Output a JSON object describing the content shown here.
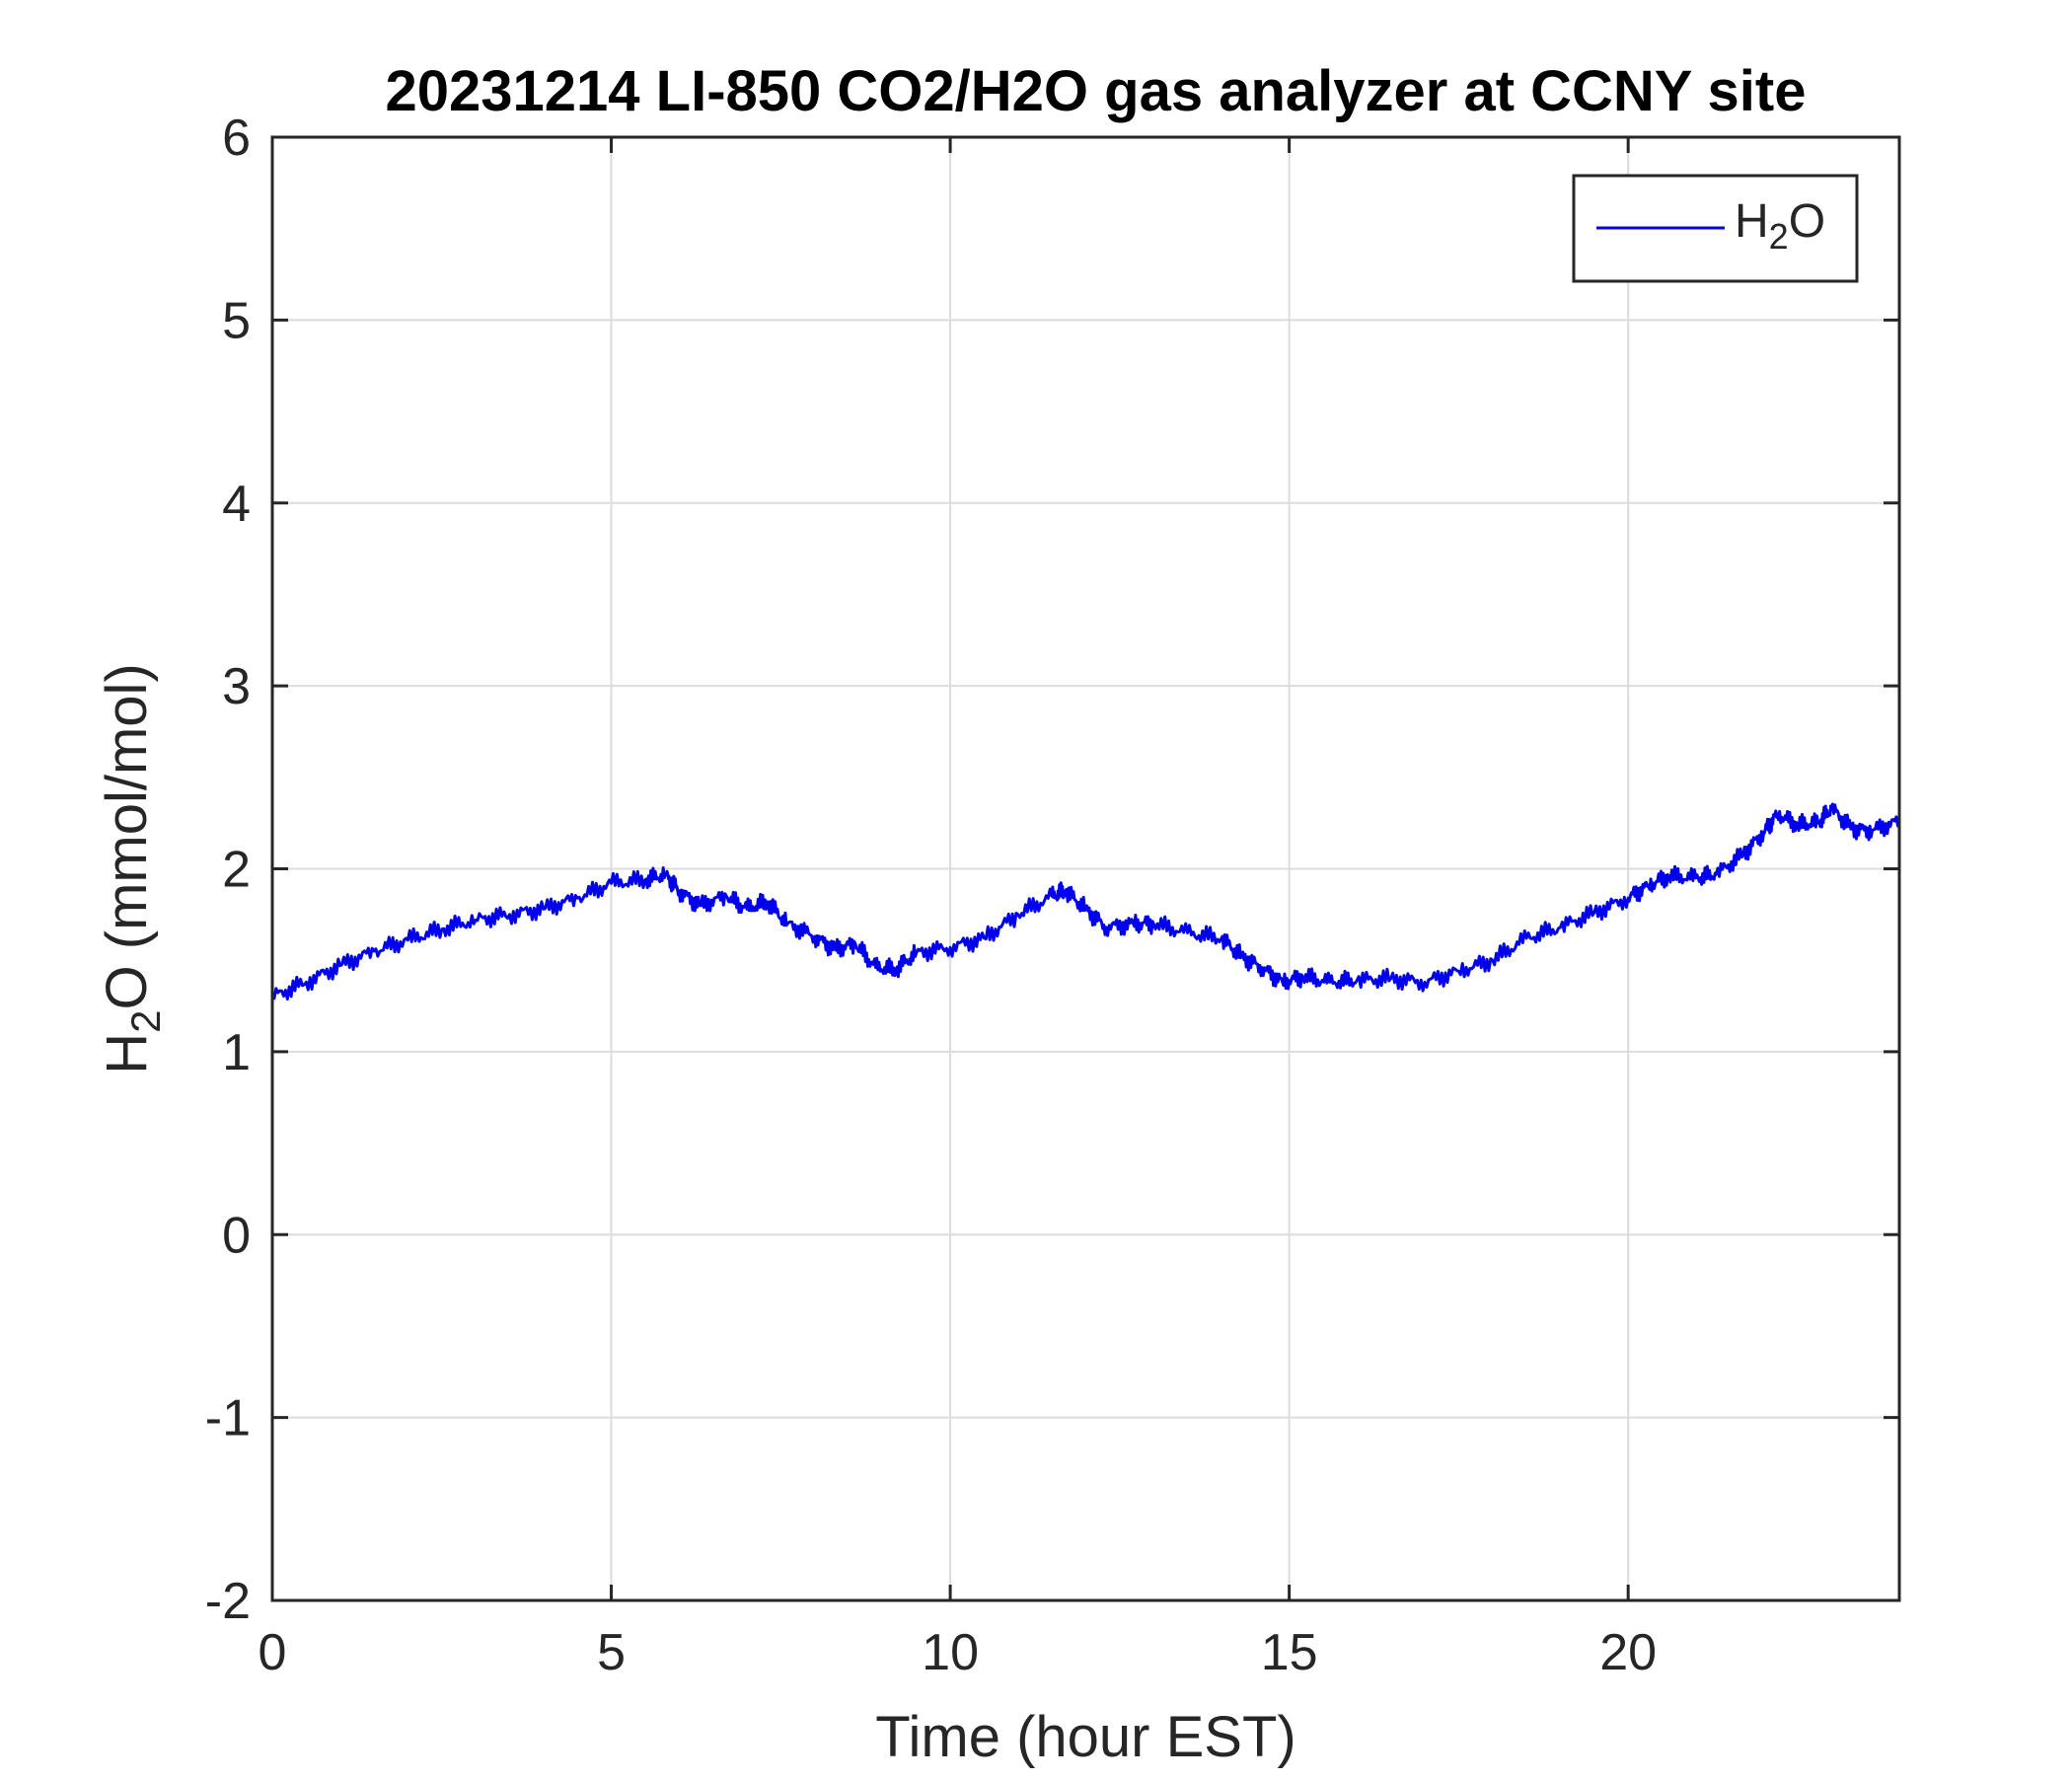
{
  "chart_data": {
    "type": "line",
    "title": "20231214 LI-850 CO2/H2O gas analyzer at CCNY site",
    "xlabel": "Time (hour EST)",
    "ylabel": {
      "main": "H",
      "sub": "2",
      "rest": "O (mmol/mol)"
    },
    "xlim": [
      0,
      24
    ],
    "ylim": [
      -2,
      6
    ],
    "xticks": [
      0,
      5,
      10,
      15,
      20
    ],
    "yticks": [
      -2,
      -1,
      0,
      1,
      2,
      3,
      4,
      5,
      6
    ],
    "grid": true,
    "legend_position": "top-right",
    "series": [
      {
        "name": {
          "main": "H",
          "sub": "2",
          "rest": "O"
        },
        "color": "#0000ee",
        "x": [
          0,
          0.5,
          1,
          1.5,
          2,
          2.5,
          3,
          3.5,
          4,
          4.5,
          5,
          5.5,
          5.8,
          6.0,
          6.3,
          6.7,
          7.0,
          7.3,
          7.6,
          8.0,
          8.3,
          8.6,
          8.9,
          9.2,
          9.5,
          10.0,
          10.5,
          11.0,
          11.5,
          11.7,
          12.0,
          12.3,
          12.7,
          13.0,
          13.5,
          14.0,
          14.3,
          14.6,
          14.9,
          15.2,
          15.6,
          16.0,
          16.5,
          17.0,
          17.5,
          18.0,
          18.5,
          19.0,
          19.5,
          20.0,
          20.3,
          20.6,
          21.0,
          21.3,
          21.7,
          22.0,
          22.2,
          22.5,
          22.8,
          23.0,
          23.3,
          23.6,
          24.0
        ],
        "y": [
          1.3,
          1.38,
          1.47,
          1.55,
          1.61,
          1.67,
          1.72,
          1.75,
          1.78,
          1.84,
          1.92,
          1.94,
          1.97,
          1.88,
          1.8,
          1.85,
          1.78,
          1.82,
          1.7,
          1.63,
          1.56,
          1.59,
          1.46,
          1.45,
          1.54,
          1.57,
          1.62,
          1.75,
          1.85,
          1.88,
          1.78,
          1.68,
          1.7,
          1.7,
          1.65,
          1.62,
          1.52,
          1.46,
          1.38,
          1.41,
          1.38,
          1.39,
          1.4,
          1.38,
          1.44,
          1.5,
          1.62,
          1.68,
          1.76,
          1.84,
          1.91,
          1.96,
          1.95,
          1.97,
          2.08,
          2.2,
          2.3,
          2.24,
          2.25,
          2.33,
          2.22,
          2.21,
          2.26
        ]
      }
    ]
  }
}
